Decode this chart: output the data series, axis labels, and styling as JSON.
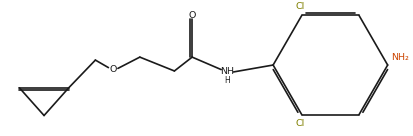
{
  "bg_color": "#ffffff",
  "line_color": "#1a1a1a",
  "text_color": "#1a1a1a",
  "cl_color": "#808000",
  "o_color": "#1a1a1a",
  "nh2_color": "#cc4400",
  "figsize": [
    4.13,
    1.36
  ],
  "dpi": 100,
  "xlim": [
    0,
    10.3
  ],
  "ylim": [
    0,
    3.4
  ]
}
